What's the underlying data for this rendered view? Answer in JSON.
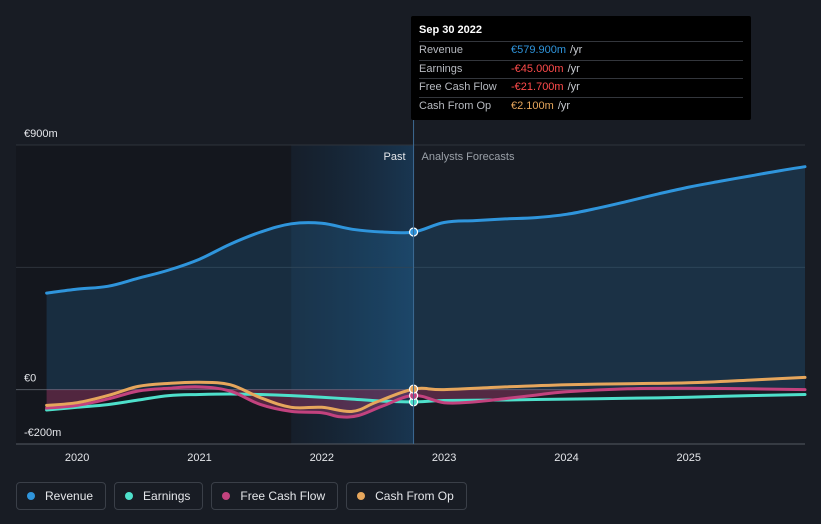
{
  "chart_data": {
    "type": "line",
    "title": "",
    "y_unit": "€m",
    "ylim": [
      -200,
      900
    ],
    "y_ticks": [
      {
        "value": 900,
        "label": "€900m"
      },
      {
        "value": 0,
        "label": "€0"
      },
      {
        "value": -200,
        "label": "-€200m"
      }
    ],
    "xlim": [
      2019.5,
      2025.95
    ],
    "x_ticks": [
      {
        "value": 2020.0,
        "label": "2020"
      },
      {
        "value": 2021.0,
        "label": "2021"
      },
      {
        "value": 2022.0,
        "label": "2022"
      },
      {
        "value": 2023.0,
        "label": "2023"
      },
      {
        "value": 2024.0,
        "label": "2024"
      },
      {
        "value": 2025.0,
        "label": "2025"
      }
    ],
    "divider_x": 2022.75,
    "highlight_start_x": 2021.75,
    "past_label": "Past",
    "forecast_label": "Analysts Forecasts",
    "series": [
      {
        "name": "Revenue",
        "color": "#2f95dc",
        "fill": true,
        "points": [
          [
            2019.75,
            355
          ],
          [
            2020.0,
            370
          ],
          [
            2020.25,
            380
          ],
          [
            2020.5,
            410
          ],
          [
            2020.75,
            440
          ],
          [
            2021.0,
            480
          ],
          [
            2021.25,
            535
          ],
          [
            2021.5,
            580
          ],
          [
            2021.75,
            610
          ],
          [
            2022.0,
            612
          ],
          [
            2022.25,
            590
          ],
          [
            2022.5,
            580
          ],
          [
            2022.75,
            579.9
          ],
          [
            2023.0,
            615
          ],
          [
            2023.25,
            622
          ],
          [
            2023.5,
            628
          ],
          [
            2023.75,
            633
          ],
          [
            2024.0,
            645
          ],
          [
            2024.25,
            667
          ],
          [
            2024.5,
            693
          ],
          [
            2024.75,
            720
          ],
          [
            2025.0,
            745
          ],
          [
            2025.25,
            766
          ],
          [
            2025.5,
            786
          ],
          [
            2025.75,
            806
          ],
          [
            2025.95,
            820
          ]
        ]
      },
      {
        "name": "Earnings",
        "color": "#4ee0cb",
        "fill": false,
        "points": [
          [
            2019.75,
            -75
          ],
          [
            2020.0,
            -65
          ],
          [
            2020.25,
            -55
          ],
          [
            2020.5,
            -38
          ],
          [
            2020.75,
            -22
          ],
          [
            2021.0,
            -18
          ],
          [
            2021.25,
            -16
          ],
          [
            2021.5,
            -18
          ],
          [
            2021.75,
            -22
          ],
          [
            2022.0,
            -28
          ],
          [
            2022.25,
            -35
          ],
          [
            2022.5,
            -42
          ],
          [
            2022.75,
            -45
          ],
          [
            2023.0,
            -40
          ],
          [
            2023.5,
            -38
          ],
          [
            2024.0,
            -35
          ],
          [
            2024.5,
            -32
          ],
          [
            2025.0,
            -28
          ],
          [
            2025.5,
            -22
          ],
          [
            2025.95,
            -18
          ]
        ]
      },
      {
        "name": "Free Cash Flow",
        "color": "#c2427e",
        "fill": true,
        "points": [
          [
            2019.75,
            -68
          ],
          [
            2020.0,
            -58
          ],
          [
            2020.25,
            -35
          ],
          [
            2020.5,
            -5
          ],
          [
            2020.75,
            5
          ],
          [
            2021.0,
            10
          ],
          [
            2021.25,
            -5
          ],
          [
            2021.5,
            -55
          ],
          [
            2021.75,
            -80
          ],
          [
            2022.0,
            -85
          ],
          [
            2022.15,
            -100
          ],
          [
            2022.3,
            -95
          ],
          [
            2022.5,
            -60
          ],
          [
            2022.75,
            -21.7
          ],
          [
            2023.0,
            -48
          ],
          [
            2023.25,
            -45
          ],
          [
            2023.5,
            -33
          ],
          [
            2023.75,
            -20
          ],
          [
            2024.0,
            -8
          ],
          [
            2024.5,
            3
          ],
          [
            2025.0,
            5
          ],
          [
            2025.5,
            3
          ],
          [
            2025.95,
            0
          ]
        ]
      },
      {
        "name": "Cash From Op",
        "color": "#e6a65c",
        "fill": false,
        "points": [
          [
            2019.75,
            -58
          ],
          [
            2020.0,
            -48
          ],
          [
            2020.25,
            -22
          ],
          [
            2020.5,
            12
          ],
          [
            2020.75,
            23
          ],
          [
            2021.0,
            27
          ],
          [
            2021.25,
            18
          ],
          [
            2021.5,
            -30
          ],
          [
            2021.75,
            -65
          ],
          [
            2022.0,
            -65
          ],
          [
            2022.25,
            -80
          ],
          [
            2022.45,
            -45
          ],
          [
            2022.75,
            2.1
          ],
          [
            2023.0,
            0
          ],
          [
            2023.5,
            10
          ],
          [
            2024.0,
            18
          ],
          [
            2024.5,
            22
          ],
          [
            2025.0,
            25
          ],
          [
            2025.5,
            35
          ],
          [
            2025.95,
            45
          ]
        ]
      }
    ]
  },
  "tooltip": {
    "date": "Sep 30 2022",
    "rows": [
      {
        "label": "Revenue",
        "value": "€579.900m",
        "unit": "/yr",
        "color": "#2f95dc"
      },
      {
        "label": "Earnings",
        "value": "-€45.000m",
        "unit": "/yr",
        "color": "#ff4b4b"
      },
      {
        "label": "Free Cash Flow",
        "value": "-€21.700m",
        "unit": "/yr",
        "color": "#ff4b4b"
      },
      {
        "label": "Cash From Op",
        "value": "€2.100m",
        "unit": "/yr",
        "color": "#e6a65c"
      }
    ]
  },
  "legend": [
    {
      "label": "Revenue",
      "color": "#2f95dc"
    },
    {
      "label": "Earnings",
      "color": "#4ee0cb"
    },
    {
      "label": "Free Cash Flow",
      "color": "#c2427e"
    },
    {
      "label": "Cash From Op",
      "color": "#e6a65c"
    }
  ]
}
